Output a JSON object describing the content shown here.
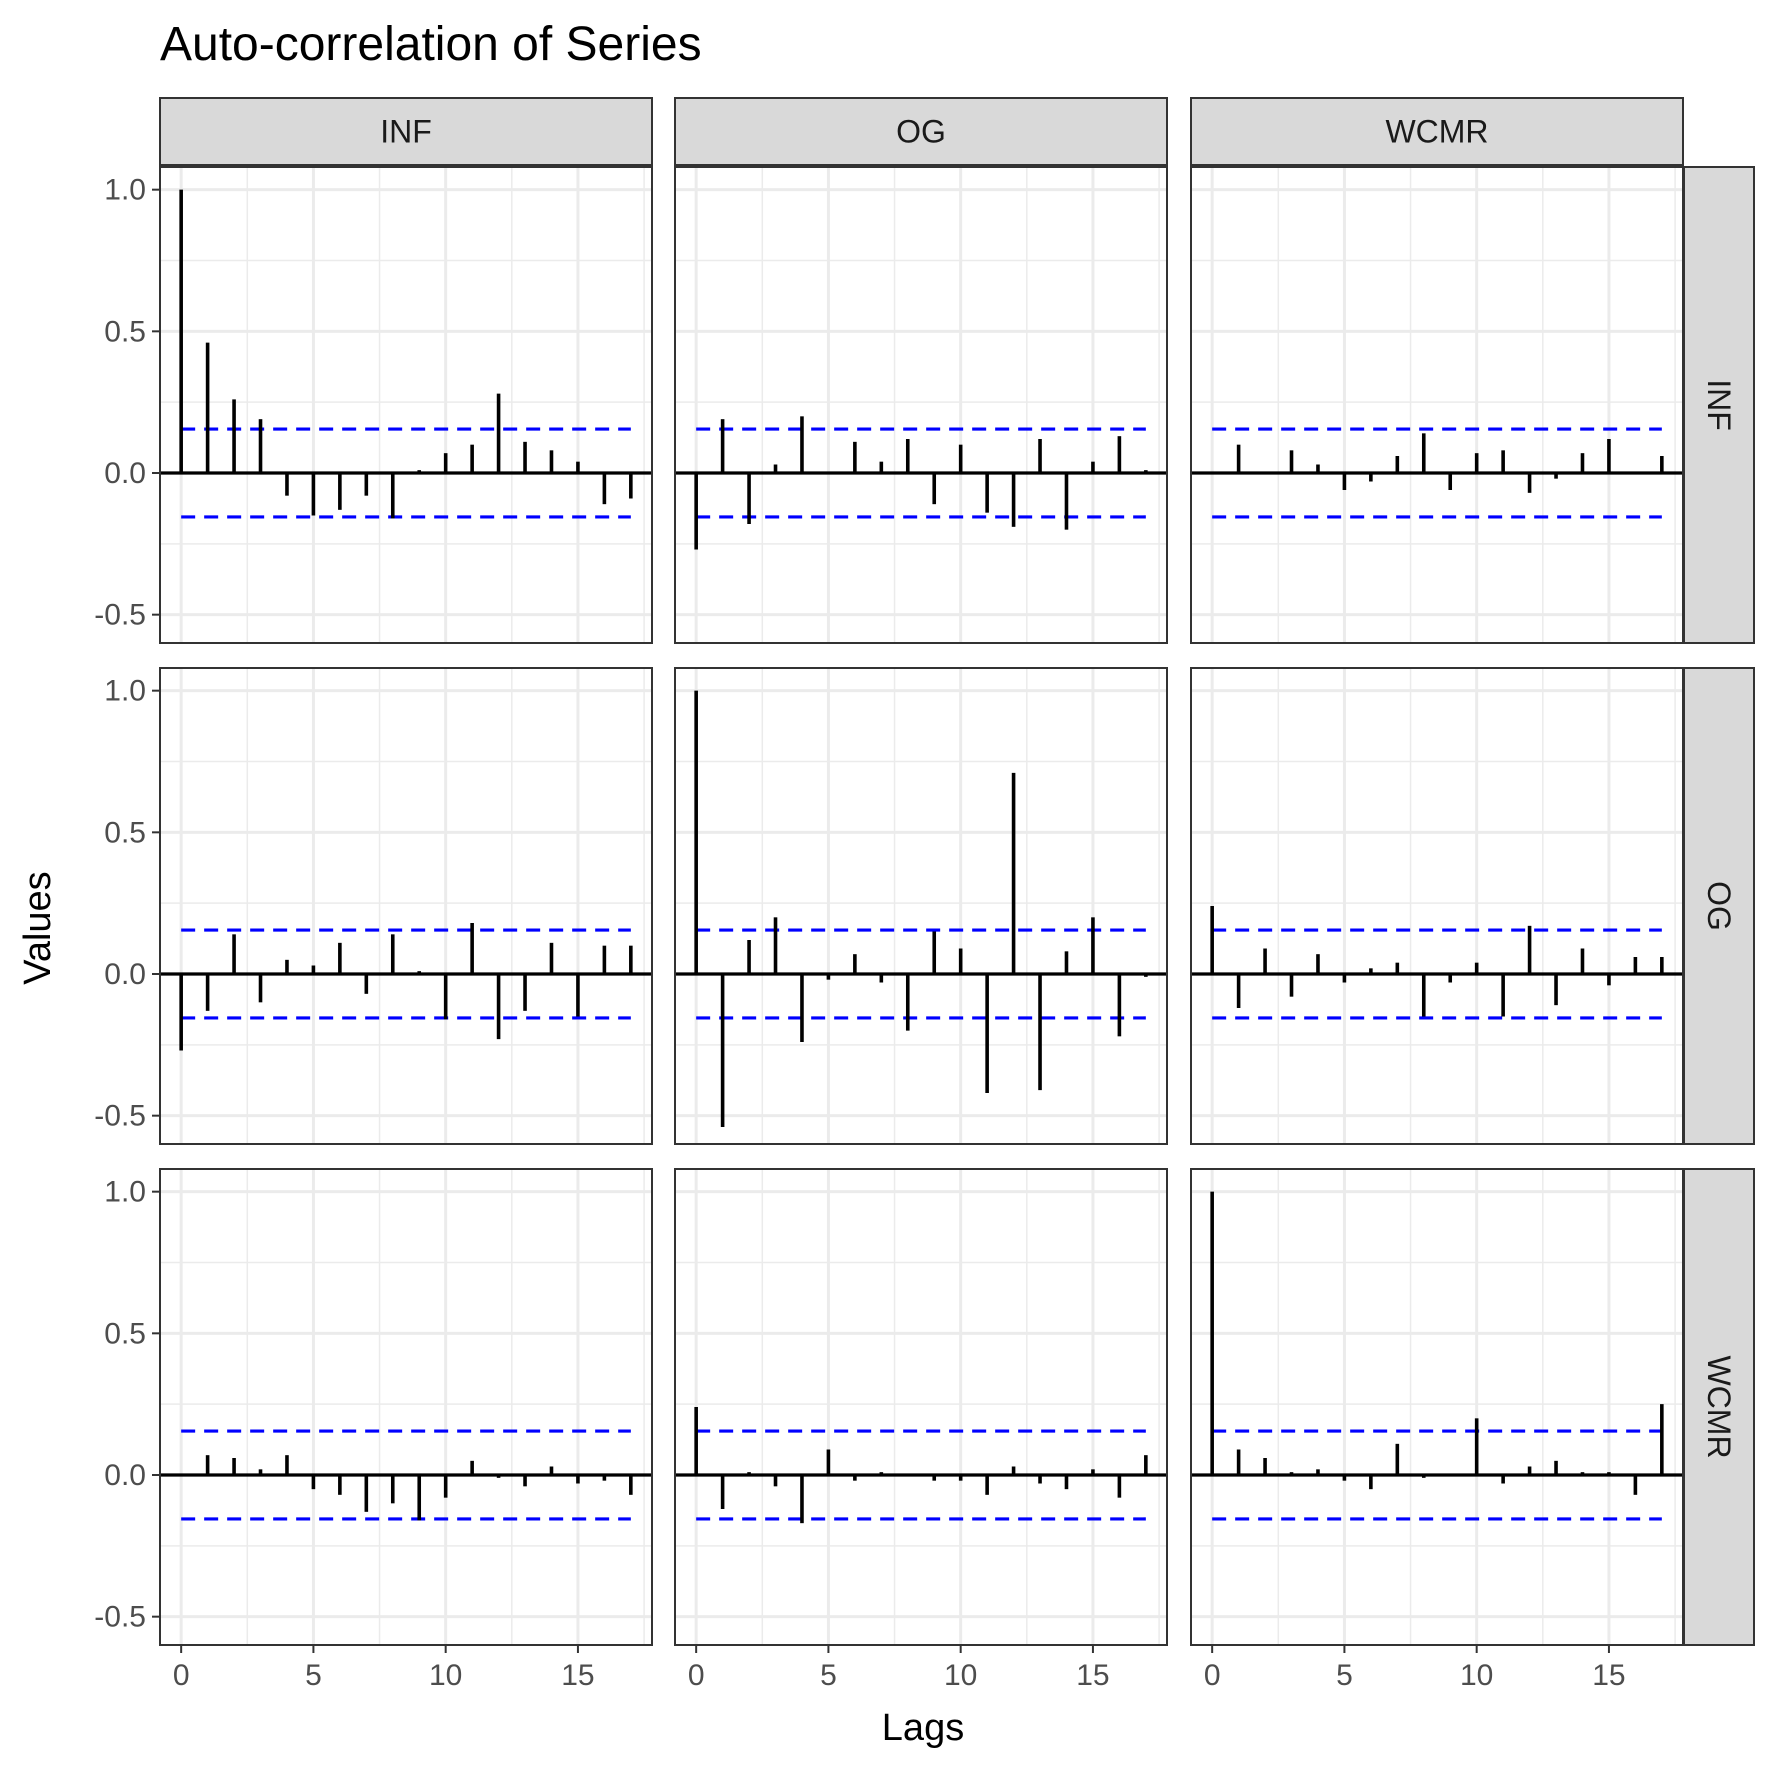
{
  "chart_data": {
    "type": "bar",
    "title": "Auto-correlation of Series",
    "xlabel": "Lags",
    "ylabel": "Values",
    "column_facets": [
      "INF",
      "OG",
      "WCMR"
    ],
    "row_facets": [
      "INF",
      "OG",
      "WCMR"
    ],
    "xlim": [
      -0.8,
      17.8
    ],
    "ylim": [
      -0.6,
      1.08
    ],
    "x_ticks": [
      0,
      5,
      10,
      15
    ],
    "x_tick_labels": [
      "0",
      "5",
      "10",
      "15"
    ],
    "y_ticks": [
      -0.5,
      0,
      0.5,
      1
    ],
    "y_tick_labels": [
      "-0.5",
      "0.0",
      "0.5",
      "1.0"
    ],
    "confidence_bound": 0.155,
    "grid": true,
    "lags": [
      0,
      1,
      2,
      3,
      4,
      5,
      6,
      7,
      8,
      9,
      10,
      11,
      12,
      13,
      14,
      15,
      16,
      17
    ],
    "panels": [
      {
        "row": "INF",
        "col": "INF",
        "values": [
          1.0,
          0.46,
          0.26,
          0.19,
          -0.08,
          -0.15,
          -0.13,
          -0.08,
          -0.16,
          0.01,
          0.07,
          0.1,
          0.28,
          0.11,
          0.08,
          0.04,
          -0.11,
          -0.09
        ]
      },
      {
        "row": "INF",
        "col": "OG",
        "values": [
          -0.27,
          0.19,
          -0.18,
          0.03,
          0.2,
          0.0,
          0.11,
          0.04,
          0.12,
          -0.11,
          0.1,
          -0.14,
          -0.19,
          0.12,
          -0.2,
          0.04,
          0.13,
          0.01
        ]
      },
      {
        "row": "INF",
        "col": "WCMR",
        "values": [
          0.0,
          0.1,
          0.0,
          0.08,
          0.03,
          -0.06,
          -0.03,
          0.06,
          0.14,
          -0.06,
          0.07,
          0.08,
          -0.07,
          -0.02,
          0.07,
          0.12,
          0.0,
          0.06
        ]
      },
      {
        "row": "OG",
        "col": "INF",
        "values": [
          -0.27,
          -0.13,
          0.14,
          -0.1,
          0.05,
          0.03,
          0.11,
          -0.07,
          0.14,
          0.01,
          -0.16,
          0.18,
          -0.23,
          -0.13,
          0.11,
          -0.15,
          0.1,
          0.1
        ]
      },
      {
        "row": "OG",
        "col": "OG",
        "values": [
          1.0,
          -0.54,
          0.12,
          0.2,
          -0.24,
          -0.02,
          0.07,
          -0.03,
          -0.2,
          0.15,
          0.09,
          -0.42,
          0.71,
          -0.41,
          0.08,
          0.2,
          -0.22,
          -0.01
        ]
      },
      {
        "row": "OG",
        "col": "WCMR",
        "values": [
          0.24,
          -0.12,
          0.09,
          -0.08,
          0.07,
          -0.03,
          0.02,
          0.04,
          -0.15,
          -0.03,
          0.04,
          -0.15,
          0.17,
          -0.11,
          0.09,
          -0.04,
          0.06,
          0.06
        ]
      },
      {
        "row": "WCMR",
        "col": "INF",
        "values": [
          0.0,
          0.07,
          0.06,
          0.02,
          0.07,
          -0.05,
          -0.07,
          -0.13,
          -0.1,
          -0.16,
          -0.08,
          0.05,
          -0.01,
          -0.04,
          0.03,
          -0.03,
          -0.02,
          -0.07
        ]
      },
      {
        "row": "WCMR",
        "col": "OG",
        "values": [
          0.24,
          -0.12,
          0.01,
          -0.04,
          -0.17,
          0.09,
          -0.02,
          0.01,
          0.0,
          -0.02,
          -0.02,
          -0.07,
          0.03,
          -0.03,
          -0.05,
          0.02,
          -0.08,
          0.07
        ]
      },
      {
        "row": "WCMR",
        "col": "WCMR",
        "values": [
          1.0,
          0.09,
          0.06,
          0.01,
          0.02,
          -0.02,
          -0.05,
          0.11,
          -0.01,
          0.0,
          0.2,
          -0.03,
          0.03,
          0.05,
          0.01,
          0.01,
          -0.07,
          0.25
        ]
      }
    ],
    "colors": {
      "bars": "#000000",
      "bounds": "#0000ff",
      "zero_line": "#000000",
      "strip_fill": "#d9d9d9",
      "grid": "#ebebeb",
      "panel_border": "#333333"
    }
  }
}
